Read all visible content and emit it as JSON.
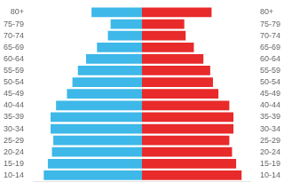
{
  "chart_data": {
    "type": "bar",
    "orientation": "horizontal",
    "categories": [
      "80+",
      "75-79",
      "70-74",
      "65-69",
      "60-64",
      "55-59",
      "50-54",
      "45-49",
      "40-44",
      "35-39",
      "30-34",
      "25-29",
      "20-24",
      "15-19",
      "10-14"
    ],
    "series": [
      {
        "color": "#3db8e8",
        "values": [
          -1.85,
          -1.15,
          -1.25,
          -1.65,
          -2.05,
          -2.35,
          -2.55,
          -2.75,
          -3.15,
          -3.35,
          -3.35,
          -3.25,
          -3.3,
          -3.45,
          -3.6
        ]
      },
      {
        "color": "#e82a2a",
        "values": [
          2.55,
          1.55,
          1.6,
          1.9,
          2.25,
          2.5,
          2.6,
          2.8,
          3.2,
          3.35,
          3.35,
          3.2,
          3.3,
          3.45,
          3.65
        ]
      }
    ],
    "xlim": [
      -4,
      4
    ],
    "tick_labels": "y",
    "grid": false
  }
}
